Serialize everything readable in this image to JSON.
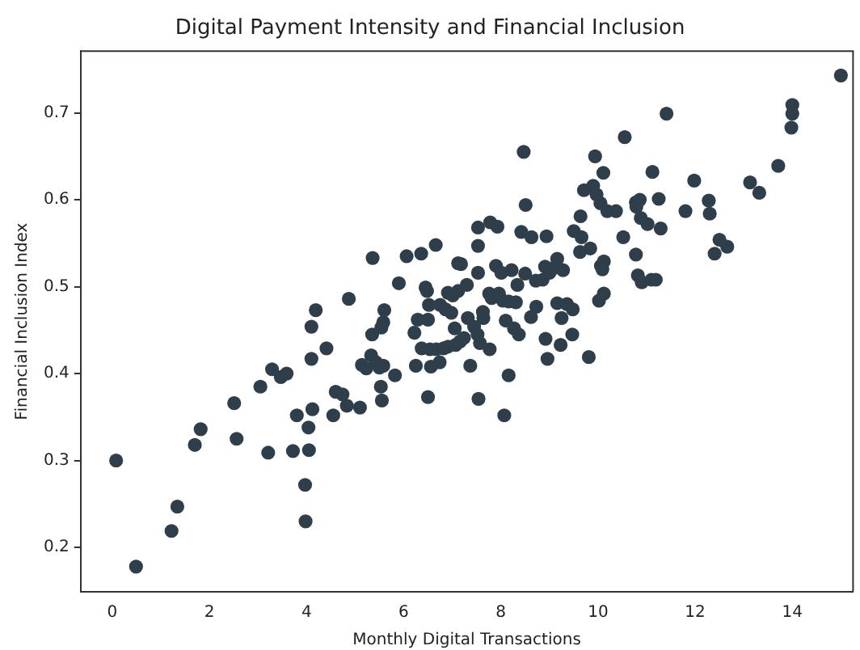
{
  "chart_data": {
    "type": "scatter",
    "title": "Digital Payment Intensity and Financial Inclusion",
    "xlabel": "Monthly Digital Transactions",
    "ylabel": "Financial Inclusion Index",
    "xlim": [
      -0.65,
      15.25
    ],
    "ylim": [
      0.149,
      0.771
    ],
    "xticks": [
      0,
      2,
      4,
      6,
      8,
      10,
      12,
      14
    ],
    "yticks": [
      0.2,
      0.3,
      0.4,
      0.5,
      0.6,
      0.7
    ],
    "grid": false,
    "legend": false,
    "marker": "circle",
    "series": [
      {
        "color": "#2f3e4b",
        "x": [
          0.08,
          0.49,
          1.22,
          1.34,
          1.7,
          1.82,
          2.51,
          2.56,
          3.05,
          3.21,
          3.29,
          3.47,
          3.59,
          3.72,
          3.8,
          3.97,
          3.98,
          4.04,
          4.05,
          4.12,
          4.1,
          4.1,
          4.19,
          4.41,
          4.55,
          4.6,
          4.74,
          4.83,
          4.87,
          5.1,
          5.14,
          5.23,
          5.33,
          5.36,
          5.35,
          5.43,
          5.5,
          5.53,
          5.55,
          5.54,
          5.6,
          5.58,
          5.58,
          5.82,
          5.9,
          6.06,
          6.22,
          6.25,
          6.29,
          6.36,
          6.37,
          6.45,
          6.48,
          6.5,
          6.5,
          6.54,
          6.52,
          6.56,
          6.66,
          6.67,
          6.74,
          6.75,
          6.82,
          6.86,
          6.91,
          6.91,
          6.98,
          7.01,
          7.05,
          7.07,
          7.12,
          7.18,
          7.12,
          7.16,
          7.24,
          7.3,
          7.32,
          7.37,
          7.45,
          7.52,
          7.53,
          7.53,
          7.53,
          7.54,
          7.57,
          7.63,
          7.64,
          7.76,
          7.77,
          7.78,
          7.81,
          7.9,
          7.93,
          7.96,
          8.01,
          8.04,
          8.07,
          8.1,
          8.16,
          8.16,
          8.22,
          8.27,
          8.31,
          8.37,
          8.34,
          8.42,
          8.47,
          8.5,
          8.51,
          8.62,
          8.63,
          8.72,
          8.73,
          8.86,
          8.92,
          8.94,
          8.96,
          8.91,
          9.0,
          9.08,
          9.16,
          9.16,
          9.23,
          9.25,
          9.28,
          9.36,
          9.47,
          9.48,
          9.5,
          9.63,
          9.64,
          9.66,
          9.71,
          9.81,
          9.84,
          9.9,
          9.94,
          9.97,
          10.02,
          10.05,
          10.06,
          10.09,
          10.11,
          10.12,
          10.19,
          10.12,
          10.37,
          10.52,
          10.55,
          10.78,
          10.78,
          10.79,
          10.82,
          10.88,
          10.86,
          10.9,
          11.02,
          11.1,
          11.12,
          11.19,
          11.25,
          11.29,
          11.41,
          11.8,
          11.98,
          12.28,
          12.3,
          12.4,
          12.5,
          12.66,
          13.13,
          13.32,
          13.71,
          13.98,
          14.0,
          14.0,
          15.0
        ],
        "values": [
          0.3,
          0.178,
          0.219,
          0.247,
          0.318,
          0.336,
          0.366,
          0.325,
          0.385,
          0.309,
          0.405,
          0.396,
          0.4,
          0.311,
          0.352,
          0.272,
          0.23,
          0.338,
          0.312,
          0.359,
          0.417,
          0.454,
          0.473,
          0.429,
          0.352,
          0.379,
          0.376,
          0.363,
          0.486,
          0.361,
          0.41,
          0.406,
          0.421,
          0.533,
          0.445,
          0.413,
          0.407,
          0.385,
          0.369,
          0.453,
          0.473,
          0.459,
          0.409,
          0.398,
          0.504,
          0.535,
          0.447,
          0.409,
          0.462,
          0.538,
          0.429,
          0.499,
          0.495,
          0.373,
          0.462,
          0.428,
          0.479,
          0.408,
          0.548,
          0.428,
          0.413,
          0.479,
          0.429,
          0.474,
          0.493,
          0.431,
          0.47,
          0.49,
          0.452,
          0.433,
          0.527,
          0.526,
          0.495,
          0.437,
          0.441,
          0.502,
          0.464,
          0.409,
          0.454,
          0.445,
          0.516,
          0.547,
          0.568,
          0.371,
          0.435,
          0.471,
          0.464,
          0.492,
          0.428,
          0.574,
          0.487,
          0.524,
          0.569,
          0.492,
          0.516,
          0.484,
          0.352,
          0.461,
          0.398,
          0.483,
          0.519,
          0.452,
          0.482,
          0.445,
          0.502,
          0.563,
          0.655,
          0.515,
          0.594,
          0.465,
          0.557,
          0.507,
          0.477,
          0.508,
          0.44,
          0.558,
          0.417,
          0.523,
          0.516,
          0.521,
          0.532,
          0.481,
          0.433,
          0.464,
          0.519,
          0.48,
          0.445,
          0.474,
          0.564,
          0.54,
          0.581,
          0.557,
          0.611,
          0.419,
          0.544,
          0.616,
          0.65,
          0.606,
          0.484,
          0.596,
          0.524,
          0.52,
          0.631,
          0.492,
          0.587,
          0.529,
          0.587,
          0.557,
          0.672,
          0.537,
          0.597,
          0.592,
          0.513,
          0.579,
          0.6,
          0.505,
          0.572,
          0.508,
          0.632,
          0.508,
          0.601,
          0.567,
          0.699,
          0.587,
          0.622,
          0.599,
          0.584,
          0.538,
          0.554,
          0.546,
          0.62,
          0.608,
          0.639,
          0.683,
          0.699,
          0.709,
          0.743
        ]
      }
    ]
  }
}
